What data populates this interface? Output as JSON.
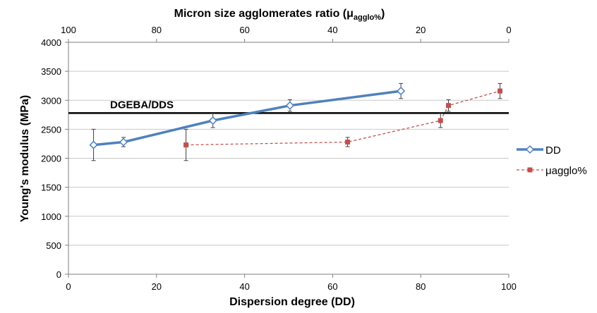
{
  "chart_data": {
    "type": "line",
    "xlabel": "Dispersion degree (DD)",
    "x2label_main": "Micron size agglomerates ratio (μ",
    "x2label_sub": "agglo%",
    "x2label_end": ")",
    "ylabel": "Young's modulus (MPa)",
    "xlim": [
      0,
      100
    ],
    "x2lim": [
      100,
      0
    ],
    "ylim": [
      0,
      4000
    ],
    "xticks": [
      "0",
      "20",
      "40",
      "60",
      "80",
      "100"
    ],
    "x2ticks": [
      "100",
      "80",
      "60",
      "40",
      "20",
      "0"
    ],
    "yticks": [
      "0",
      "500",
      "1000",
      "1500",
      "2000",
      "2500",
      "3000",
      "3500",
      "4000"
    ],
    "reference_line": {
      "label": "DGEBA/DDS",
      "value": 2780
    },
    "legend_position": "right",
    "series": [
      {
        "name": "DD",
        "axis": "bottom",
        "color": "#4f81bd",
        "marker": "diamond",
        "x": [
          5.7,
          12.5,
          32.8,
          50.3,
          75.5
        ],
        "y": [
          2230,
          2280,
          2650,
          2910,
          3160
        ],
        "err": [
          270,
          80,
          120,
          100,
          130
        ]
      },
      {
        "name": "μagglo%",
        "axis": "top",
        "color": "#c0504d",
        "marker": "square",
        "x": [
          73.3,
          36.6,
          15.5,
          13.7,
          2.0
        ],
        "y": [
          2230,
          2280,
          2650,
          2910,
          3160
        ],
        "err": [
          270,
          80,
          120,
          100,
          130
        ]
      }
    ]
  }
}
